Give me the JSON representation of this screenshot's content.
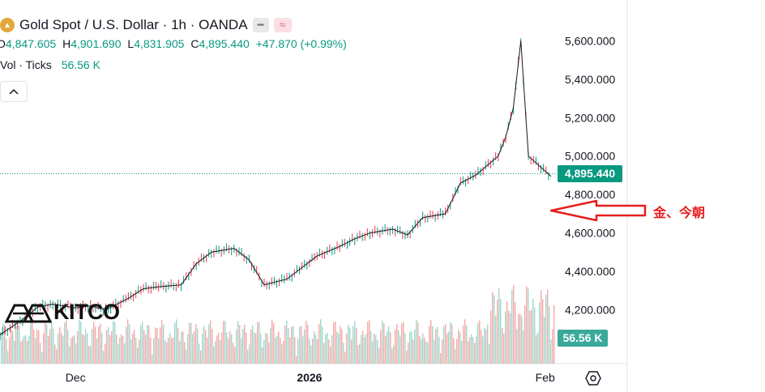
{
  "header": {
    "title": "Gold Spot / U.S. Dollar · 1h · OANDA",
    "ohlc": [
      {
        "key": "O",
        "value": "4,847.605"
      },
      {
        "key": "H",
        "value": "4,901.690"
      },
      {
        "key": "L",
        "value": "4,831.905"
      },
      {
        "key": "C",
        "value": "4,895.440"
      }
    ],
    "change": "+47.870 (+0.99%)",
    "volume_label": "Vol · Ticks",
    "volume_value": "56.56 K",
    "collapse_icon": "chevron-up-icon"
  },
  "price_tag": "4,895.440",
  "volume_tag": "56.56 K",
  "annotation": "金、今朝",
  "logo_text": "KITCO",
  "colors": {
    "up": "#089981",
    "down": "#f23645",
    "annotation": "#e81e1e",
    "vol_up": "#9fd7cc",
    "vol_down": "#f5a9a9"
  },
  "chart_data": {
    "type": "line",
    "title": "Gold Spot / U.S. Dollar · 1h · OANDA",
    "y_ticks": [
      "5,600.000",
      "5,400.000",
      "5,200.000",
      "5,000.000",
      "4,800.000",
      "4,600.000",
      "4,400.000",
      "4,200.000"
    ],
    "x_ticks": [
      "Dec",
      "2026",
      "Feb"
    ],
    "ylim": [
      4135,
      5610
    ],
    "x": [
      "2025-11-21",
      "2025-11-24",
      "2025-11-26",
      "2025-11-28",
      "2025-12-01",
      "2025-12-03",
      "2025-12-05",
      "2025-12-08",
      "2025-12-10",
      "2025-12-12",
      "2025-12-15",
      "2025-12-17",
      "2025-12-19",
      "2025-12-22",
      "2025-12-24",
      "2025-12-26",
      "2025-12-29",
      "2025-12-31",
      "2026-01-02",
      "2026-01-05",
      "2026-01-07",
      "2026-01-09",
      "2026-01-12",
      "2026-01-14",
      "2026-01-16",
      "2026-01-19",
      "2026-01-21",
      "2026-01-23",
      "2026-01-26",
      "2026-01-27",
      "2026-01-28",
      "2026-01-29",
      "2026-01-30",
      "2026-02-02"
    ],
    "series": [
      {
        "values": [
          4070,
          4150,
          4215,
          4230,
          4210,
          4220,
          4200,
          4260,
          4310,
          4320,
          4330,
          4440,
          4500,
          4520,
          4460,
          4330,
          4360,
          4420,
          4480,
          4530,
          4570,
          4600,
          4620,
          4590,
          4680,
          4700,
          4860,
          4900,
          5000,
          5100,
          5250,
          5600,
          5000,
          4895
        ]
      }
    ],
    "volume": {
      "label": "Vol · Ticks",
      "last": "56.56 K"
    },
    "last_price": "4,895.440",
    "grid": false
  }
}
